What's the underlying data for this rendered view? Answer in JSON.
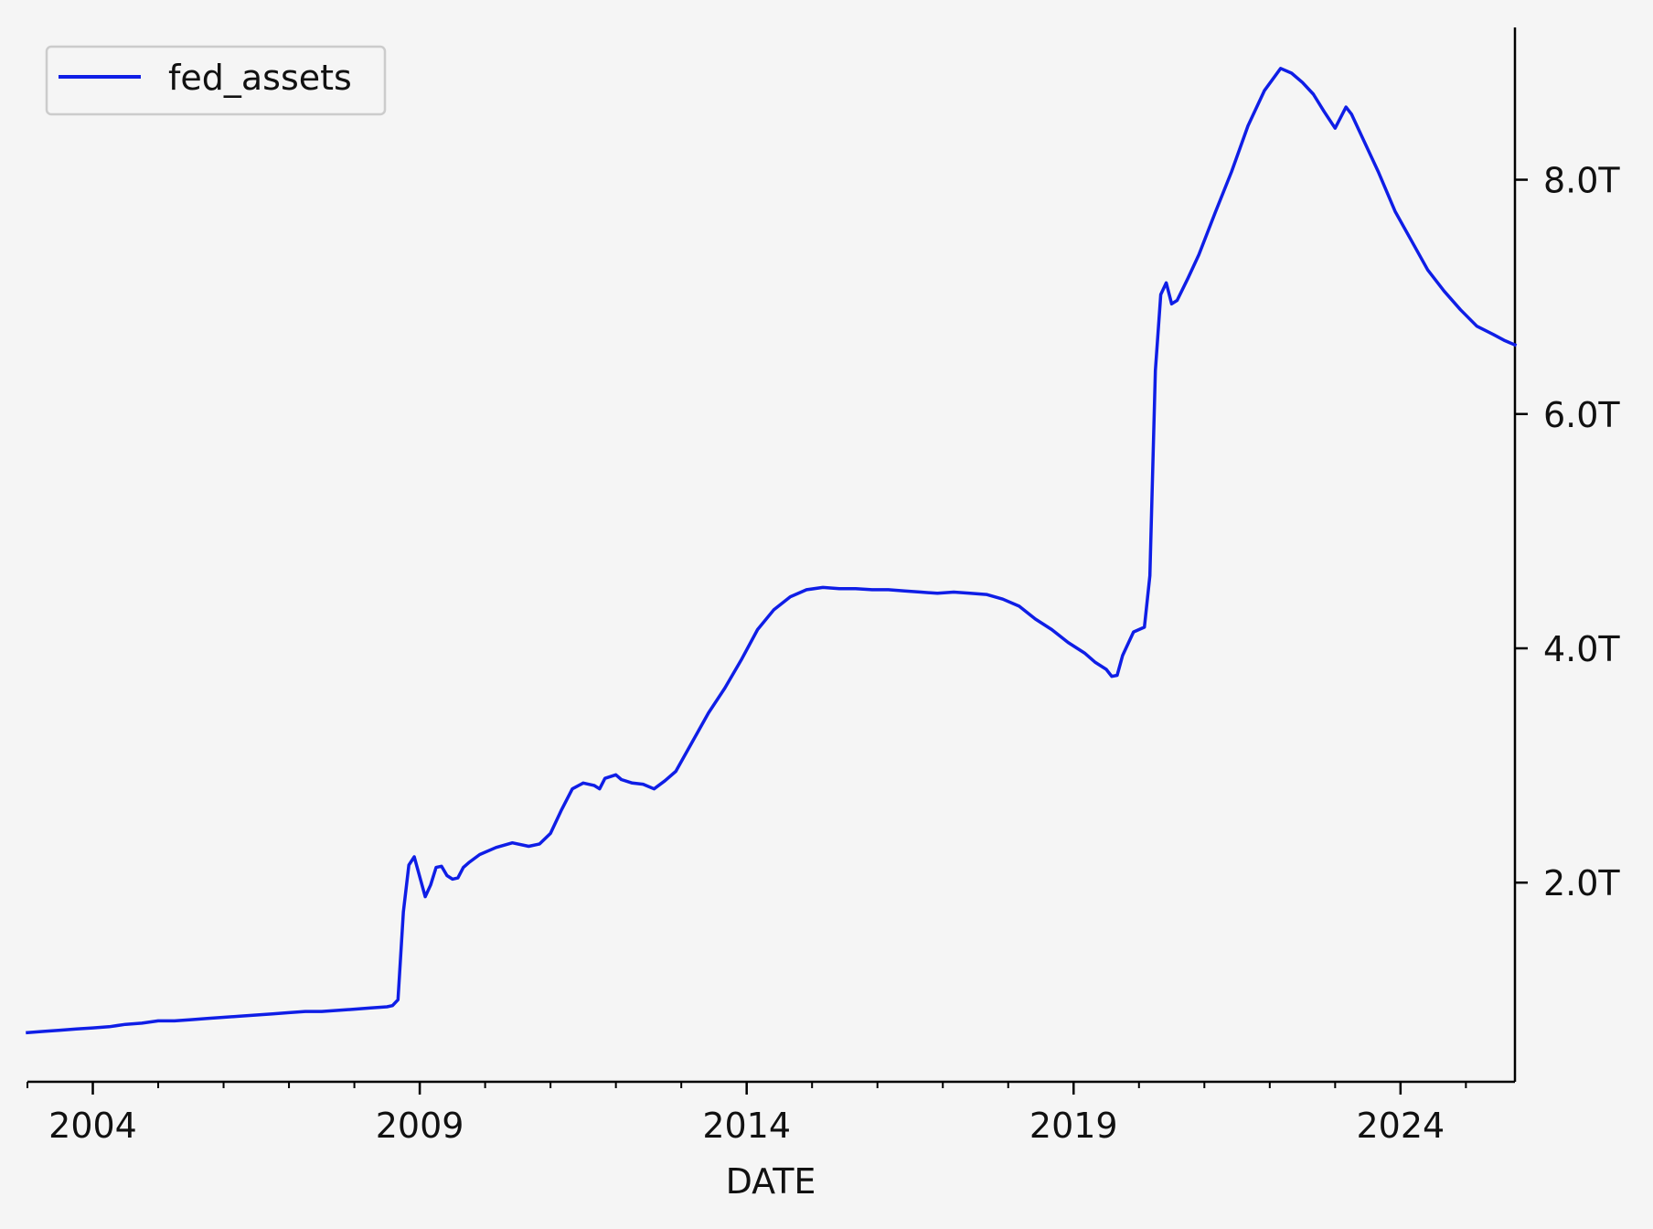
{
  "chart_data": {
    "type": "line",
    "title": "",
    "xlabel": "DATE",
    "ylabel": "",
    "y_axis_side": "right",
    "legend": {
      "position": "top-left",
      "entries": [
        "fed_assets"
      ]
    },
    "grid": false,
    "xlim": [
      "2003-01",
      "2025-10"
    ],
    "ylim": [
      0.3,
      9.3
    ],
    "x_ticks": [
      {
        "date": "2004-01",
        "label": "2004"
      },
      {
        "date": "2009-01",
        "label": "2009"
      },
      {
        "date": "2014-01",
        "label": "2014"
      },
      {
        "date": "2019-01",
        "label": "2019"
      },
      {
        "date": "2024-01",
        "label": "2024"
      }
    ],
    "y_ticks": [
      {
        "value": 2.0,
        "label": "2.0T"
      },
      {
        "value": 4.0,
        "label": "4.0T"
      },
      {
        "value": 6.0,
        "label": "6.0T"
      },
      {
        "value": 8.0,
        "label": "8.0T"
      }
    ],
    "series": [
      {
        "name": "fed_assets",
        "color": "#0f1ee6",
        "unit": "trillion USD",
        "points": [
          [
            "2003-01",
            0.72
          ],
          [
            "2003-04",
            0.73
          ],
          [
            "2003-07",
            0.74
          ],
          [
            "2003-10",
            0.75
          ],
          [
            "2004-01",
            0.76
          ],
          [
            "2004-04",
            0.77
          ],
          [
            "2004-07",
            0.79
          ],
          [
            "2004-10",
            0.8
          ],
          [
            "2005-01",
            0.82
          ],
          [
            "2005-04",
            0.82
          ],
          [
            "2005-07",
            0.83
          ],
          [
            "2005-10",
            0.84
          ],
          [
            "2006-01",
            0.85
          ],
          [
            "2006-04",
            0.86
          ],
          [
            "2006-07",
            0.87
          ],
          [
            "2006-10",
            0.88
          ],
          [
            "2007-01",
            0.89
          ],
          [
            "2007-04",
            0.9
          ],
          [
            "2007-07",
            0.9
          ],
          [
            "2007-10",
            0.91
          ],
          [
            "2008-01",
            0.92
          ],
          [
            "2008-04",
            0.93
          ],
          [
            "2008-07",
            0.94
          ],
          [
            "2008-08",
            0.95
          ],
          [
            "2008-09",
            1.0
          ],
          [
            "2008-10",
            1.75
          ],
          [
            "2008-11",
            2.15
          ],
          [
            "2008-12",
            2.22
          ],
          [
            "2009-01",
            2.05
          ],
          [
            "2009-02",
            1.88
          ],
          [
            "2009-03",
            1.98
          ],
          [
            "2009-04",
            2.13
          ],
          [
            "2009-05",
            2.14
          ],
          [
            "2009-06",
            2.06
          ],
          [
            "2009-07",
            2.03
          ],
          [
            "2009-08",
            2.04
          ],
          [
            "2009-09",
            2.13
          ],
          [
            "2009-10",
            2.17
          ],
          [
            "2009-12",
            2.24
          ],
          [
            "2010-03",
            2.3
          ],
          [
            "2010-06",
            2.34
          ],
          [
            "2010-09",
            2.31
          ],
          [
            "2010-11",
            2.33
          ],
          [
            "2011-01",
            2.42
          ],
          [
            "2011-03",
            2.62
          ],
          [
            "2011-05",
            2.8
          ],
          [
            "2011-07",
            2.85
          ],
          [
            "2011-09",
            2.83
          ],
          [
            "2011-10",
            2.8
          ],
          [
            "2011-11",
            2.89
          ],
          [
            "2012-01",
            2.92
          ],
          [
            "2012-02",
            2.88
          ],
          [
            "2012-04",
            2.85
          ],
          [
            "2012-06",
            2.84
          ],
          [
            "2012-08",
            2.8
          ],
          [
            "2012-10",
            2.87
          ],
          [
            "2012-12",
            2.95
          ],
          [
            "2013-03",
            3.2
          ],
          [
            "2013-06",
            3.45
          ],
          [
            "2013-09",
            3.66
          ],
          [
            "2013-12",
            3.9
          ],
          [
            "2014-03",
            4.16
          ],
          [
            "2014-06",
            4.33
          ],
          [
            "2014-09",
            4.44
          ],
          [
            "2014-12",
            4.5
          ],
          [
            "2015-03",
            4.52
          ],
          [
            "2015-06",
            4.51
          ],
          [
            "2015-09",
            4.51
          ],
          [
            "2015-12",
            4.5
          ],
          [
            "2016-03",
            4.5
          ],
          [
            "2016-06",
            4.49
          ],
          [
            "2016-09",
            4.48
          ],
          [
            "2016-12",
            4.47
          ],
          [
            "2017-03",
            4.48
          ],
          [
            "2017-06",
            4.47
          ],
          [
            "2017-09",
            4.46
          ],
          [
            "2017-12",
            4.42
          ],
          [
            "2018-03",
            4.36
          ],
          [
            "2018-06",
            4.25
          ],
          [
            "2018-09",
            4.16
          ],
          [
            "2018-12",
            4.05
          ],
          [
            "2019-03",
            3.96
          ],
          [
            "2019-05",
            3.88
          ],
          [
            "2019-07",
            3.82
          ],
          [
            "2019-08",
            3.76
          ],
          [
            "2019-09",
            3.77
          ],
          [
            "2019-10",
            3.94
          ],
          [
            "2019-12",
            4.14
          ],
          [
            "2020-02",
            4.18
          ],
          [
            "2020-03",
            4.62
          ],
          [
            "2020-04",
            6.37
          ],
          [
            "2020-05",
            7.02
          ],
          [
            "2020-06",
            7.12
          ],
          [
            "2020-07",
            6.94
          ],
          [
            "2020-08",
            6.97
          ],
          [
            "2020-10",
            7.16
          ],
          [
            "2020-12",
            7.36
          ],
          [
            "2021-03",
            7.72
          ],
          [
            "2021-06",
            8.07
          ],
          [
            "2021-09",
            8.46
          ],
          [
            "2021-12",
            8.76
          ],
          [
            "2022-03",
            8.95
          ],
          [
            "2022-05",
            8.91
          ],
          [
            "2022-07",
            8.83
          ],
          [
            "2022-09",
            8.73
          ],
          [
            "2022-11",
            8.58
          ],
          [
            "2023-01",
            8.44
          ],
          [
            "2023-03",
            8.62
          ],
          [
            "2023-04",
            8.56
          ],
          [
            "2023-06",
            8.36
          ],
          [
            "2023-09",
            8.06
          ],
          [
            "2023-12",
            7.73
          ],
          [
            "2024-03",
            7.48
          ],
          [
            "2024-06",
            7.23
          ],
          [
            "2024-09",
            7.05
          ],
          [
            "2024-12",
            6.89
          ],
          [
            "2025-03",
            6.75
          ],
          [
            "2025-06",
            6.68
          ],
          [
            "2025-08",
            6.63
          ],
          [
            "2025-10",
            6.59
          ]
        ]
      }
    ]
  }
}
